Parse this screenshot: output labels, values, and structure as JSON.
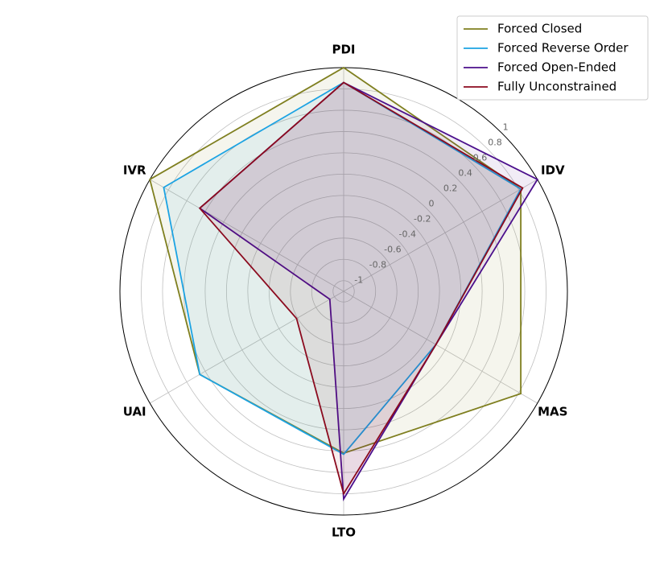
{
  "chart_data": {
    "type": "radar",
    "categories": [
      "PDI",
      "IDV",
      "MAS",
      "LTO",
      "UAI",
      "IVR"
    ],
    "ylim": [
      -1.1,
      1.0
    ],
    "yticks": [
      -1.0,
      -0.8,
      -0.6,
      -0.4,
      -0.2,
      0.0,
      0.2,
      0.4,
      0.6,
      0.8,
      1.0
    ],
    "grid": true,
    "legend": "upper right",
    "series": [
      {
        "name": "Forced Closed",
        "color": "#7f7f1f",
        "values": [
          1.0,
          0.82,
          0.82,
          0.42,
          0.46,
          1.0
        ]
      },
      {
        "name": "Forced Reverse Order",
        "color": "#1ca3e3",
        "values": [
          0.86,
          0.82,
          -0.1,
          0.43,
          0.46,
          0.85
        ]
      },
      {
        "name": "Forced Open-Ended",
        "color": "#4b0f8c",
        "values": [
          0.86,
          1.0,
          -0.1,
          0.85,
          -0.95,
          0.46
        ]
      },
      {
        "name": "Fully Unconstrained",
        "color": "#8b0a1e",
        "values": [
          0.86,
          0.84,
          -0.1,
          0.8,
          -0.59,
          0.46
        ]
      }
    ]
  }
}
